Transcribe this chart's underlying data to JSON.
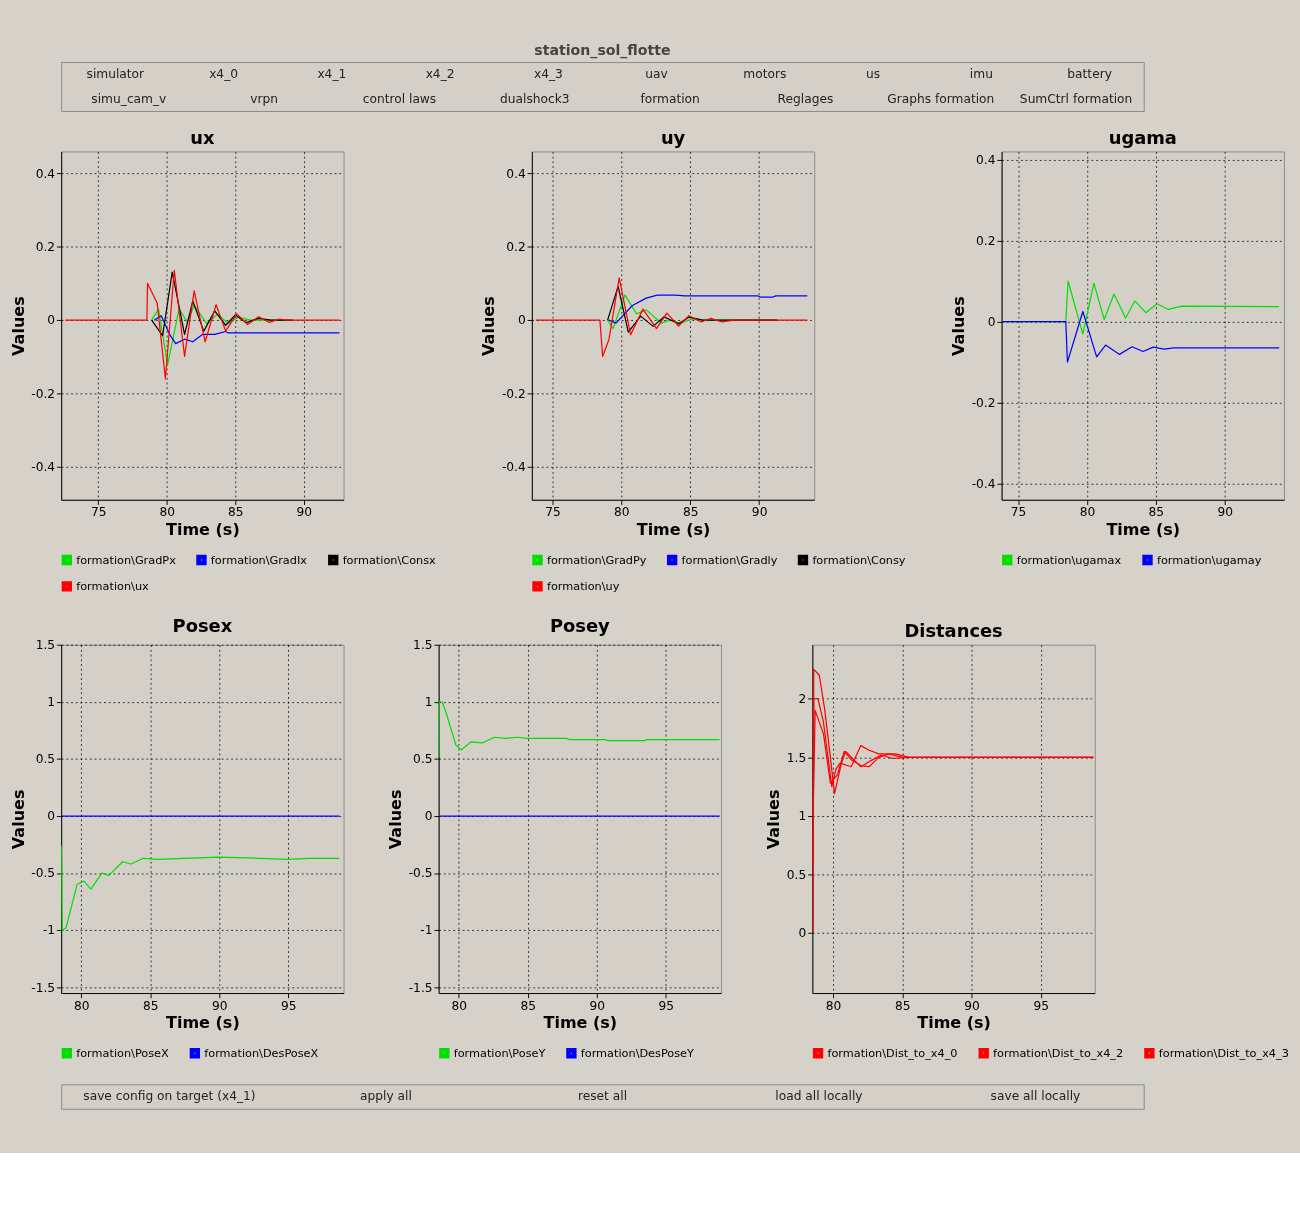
{
  "chart_data": [
    {
      "type": "other",
      "title": "station_sol_flotte",
      "annotations": [
        "simulator",
        "x4_0",
        "x4_1",
        "x4_2",
        "x4_3",
        "uav",
        "motors",
        "us",
        "imu",
        "battery",
        "simu_cam_v",
        "vrpn",
        "control laws",
        "dualshock3",
        "formation",
        "Reglages",
        "Graphs formation",
        "SumCtrl formation"
      ]
    },
    {
      "type": "line",
      "title": "ux",
      "xlabel": "Time (s)",
      "ylabel": "Values",
      "xlim": [
        72.3,
        92.9
      ],
      "xticks": [
        75,
        80,
        85,
        90
      ],
      "ylim": [
        -0.49,
        0.46
      ],
      "yticks": [
        -0.4,
        -0.2,
        0,
        0.2,
        0.4
      ],
      "grid": true,
      "legend": "bottom",
      "series": [
        {
          "name": "formation\\GradPx",
          "color": "#00e000",
          "x": [
            78.9,
            79.4,
            80.06,
            80.9,
            81.5,
            82.0,
            82.9,
            83.7,
            84.5,
            85.2,
            86.1,
            88.6
          ],
          "values": [
            0,
            0.03,
            -0.122,
            0.03,
            -0.005,
            0.04,
            -0.009,
            0.016,
            -0.009,
            0.008,
            0,
            0
          ]
        },
        {
          "name": "formation\\GradIx",
          "color": "#0000ff",
          "x": [
            79.1,
            79.6,
            80.2,
            80.65,
            81.3,
            81.9,
            82.6,
            83.5,
            84.3,
            84.5,
            92.6
          ],
          "values": [
            0,
            0.012,
            -0.038,
            -0.064,
            -0.052,
            -0.059,
            -0.039,
            -0.039,
            -0.031,
            -0.035,
            -0.035
          ]
        },
        {
          "name": "formation\\Consx",
          "color": "#000000",
          "x": [
            78.9,
            79.7,
            80.4,
            81.3,
            81.9,
            82.7,
            83.5,
            84.3,
            85.0,
            85.8,
            86.7,
            87.6,
            89.2
          ],
          "values": [
            0,
            -0.042,
            0.131,
            -0.039,
            0.052,
            -0.03,
            0.025,
            -0.014,
            0.014,
            -0.007,
            0.005,
            0,
            0
          ]
        },
        {
          "name": "formation\\ux",
          "color": "#ff0000",
          "x": [
            72.6,
            78.55,
            78.6,
            79.3,
            79.9,
            80.55,
            81.3,
            82.0,
            82.8,
            83.6,
            84.3,
            85.1,
            85.9,
            86.7,
            87.5,
            88.2,
            88.8,
            92.6
          ],
          "values": [
            0,
            0,
            0.1,
            0.047,
            -0.16,
            0.136,
            -0.099,
            0.08,
            -0.059,
            0.042,
            -0.03,
            0.017,
            -0.012,
            0.009,
            -0.006,
            0.003,
            0,
            0
          ]
        }
      ]
    },
    {
      "type": "line",
      "title": "uy",
      "xlabel": "Time (s)",
      "ylabel": "Values",
      "xlim": [
        73.5,
        94.0
      ],
      "xticks": [
        75,
        80,
        85,
        90
      ],
      "ylim": [
        -0.49,
        0.46
      ],
      "yticks": [
        -0.4,
        -0.2,
        0,
        0.2,
        0.4
      ],
      "grid": true,
      "legend": "bottom",
      "series": [
        {
          "name": "formation\\GradPy",
          "color": "#00e000",
          "x": [
            79.0,
            79.4,
            80.26,
            81.1,
            81.8,
            82.9,
            83.5,
            84.3,
            85.1,
            85.9,
            91.3
          ],
          "values": [
            0,
            -0.023,
            0.069,
            0.017,
            0.028,
            -0.008,
            0,
            -0.008,
            0.003,
            0,
            0
          ]
        },
        {
          "name": "formation\\Gradly",
          "color": "#0000ff",
          "x": [
            79.1,
            79.6,
            80.8,
            81.8,
            82.6,
            83.9,
            84.6,
            89.9,
            90.1,
            91.0,
            91.2,
            93.5
          ],
          "values": [
            0,
            -0.008,
            0.04,
            0.06,
            0.068,
            0.068,
            0.066,
            0.066,
            0.063,
            0.063,
            0.066,
            0.066
          ]
        },
        {
          "name": "formation\\Consy",
          "color": "#000000",
          "x": [
            79.0,
            79.76,
            80.5,
            81.4,
            82.3,
            83.1,
            84.15,
            84.9,
            85.9,
            91.3
          ],
          "values": [
            0,
            0.092,
            -0.033,
            0.011,
            -0.017,
            0.009,
            -0.01,
            0.008,
            0,
            0
          ]
        },
        {
          "name": "formation\\uy",
          "color": "#ff0000",
          "x": [
            73.8,
            78.44,
            78.64,
            79.1,
            79.84,
            80.67,
            81.56,
            82.55,
            83.3,
            84.15,
            84.9,
            85.8,
            86.5,
            87.3,
            88.2,
            93.5
          ],
          "values": [
            0,
            0,
            -0.099,
            -0.052,
            0.115,
            -0.04,
            0.03,
            -0.023,
            0.019,
            -0.016,
            0.012,
            -0.005,
            0.005,
            -0.005,
            0,
            0
          ]
        }
      ]
    },
    {
      "type": "line",
      "title": "ugama",
      "xlabel": "Time (s)",
      "ylabel": "Values",
      "xlim": [
        73.8,
        94.3
      ],
      "xticks": [
        75,
        80,
        85,
        90
      ],
      "ylim": [
        -0.44,
        0.42
      ],
      "yticks": [
        -0.4,
        -0.2,
        0,
        0.2,
        0.4
      ],
      "grid": true,
      "legend": "bottom",
      "series": [
        {
          "name": "formation\\ugamax",
          "color": "#00e000",
          "x": [
            73.9,
            78.46,
            78.63,
            79.7,
            80.5,
            81.25,
            81.96,
            82.8,
            83.47,
            84.27,
            85.08,
            85.9,
            86.9,
            93.95
          ],
          "values": [
            0,
            0,
            0.1,
            -0.031,
            0.095,
            0.005,
            0.068,
            0.009,
            0.051,
            0.022,
            0.044,
            0.03,
            0.038,
            0.037
          ]
        },
        {
          "name": "formation\\ugamay",
          "color": "#0000ff",
          "x": [
            73.9,
            78.46,
            78.58,
            79.7,
            80.7,
            81.35,
            82.36,
            83.27,
            84.07,
            84.8,
            85.6,
            86.3,
            93.95
          ],
          "values": [
            0,
            0,
            -0.1,
            0.025,
            -0.087,
            -0.058,
            -0.081,
            -0.062,
            -0.074,
            -0.063,
            -0.068,
            -0.065,
            -0.065
          ]
        }
      ]
    },
    {
      "type": "line",
      "title": "Posex",
      "xlabel": "Time (s)",
      "ylabel": "Values",
      "xlim": [
        78.55,
        99.0
      ],
      "xticks": [
        80,
        85,
        90,
        95
      ],
      "ylim": [
        -1.55,
        1.5
      ],
      "yticks": [
        -1.5,
        -1,
        -0.5,
        0,
        0.5,
        1,
        1.5
      ],
      "grid": true,
      "legend": "bottom",
      "series": [
        {
          "name": "formation\\PoseX",
          "color": "#00e000",
          "x": [
            78.57,
            78.6,
            78.63,
            78.9,
            79.7,
            80.2,
            80.7,
            81.5,
            82.0,
            83.0,
            83.6,
            84.5,
            85.5,
            89.9,
            92.9,
            94.9,
            96.5,
            98.7
          ],
          "values": [
            -0.26,
            -0.7,
            -1.0,
            -0.98,
            -0.6,
            -0.57,
            -0.64,
            -0.5,
            -0.52,
            -0.4,
            -0.42,
            -0.37,
            -0.38,
            -0.36,
            -0.37,
            -0.38,
            -0.37,
            -0.37
          ]
        },
        {
          "name": "formation\\DesPoseX",
          "color": "#0000ff",
          "x": [
            78.6,
            98.7
          ],
          "values": [
            0,
            0
          ]
        }
      ]
    },
    {
      "type": "line",
      "title": "Posey",
      "xlabel": "Time (s)",
      "ylabel": "Values",
      "xlim": [
        78.55,
        99.0
      ],
      "xticks": [
        80,
        85,
        90,
        95
      ],
      "ylim": [
        -1.55,
        1.5
      ],
      "yticks": [
        -1.5,
        -1,
        -0.5,
        0,
        0.5,
        1,
        1.5
      ],
      "grid": true,
      "legend": "bottom",
      "series": [
        {
          "name": "formation\\PoseY",
          "color": "#00e000",
          "x": [
            78.56,
            78.58,
            78.8,
            79.1,
            79.8,
            80.2,
            80.9,
            81.7,
            82.6,
            83.4,
            84.25,
            84.96,
            87.8,
            88.0,
            90.6,
            90.8,
            93.5,
            93.6,
            98.9
          ],
          "values": [
            0.52,
            1.0,
            1.0,
            0.9,
            0.62,
            0.58,
            0.65,
            0.64,
            0.69,
            0.68,
            0.69,
            0.68,
            0.68,
            0.67,
            0.67,
            0.66,
            0.66,
            0.67,
            0.67
          ]
        },
        {
          "name": "formation\\DesPoseY",
          "color": "#0000ff",
          "x": [
            78.6,
            98.9
          ],
          "values": [
            0,
            0
          ]
        }
      ]
    },
    {
      "type": "line",
      "title": "Distances",
      "xlabel": "Time (s)",
      "ylabel": "Values",
      "xlim": [
        78.5,
        98.9
      ],
      "xticks": [
        80,
        85,
        90,
        95
      ],
      "ylim": [
        -0.51,
        2.46
      ],
      "yticks": [
        0,
        0.5,
        1,
        1.5,
        2
      ],
      "grid": true,
      "legend": "bottom",
      "series": [
        {
          "name": "formation\\Dist_to_x4_0",
          "color": "#ff0000",
          "x": [
            78.55,
            78.6,
            79.0,
            79.4,
            79.8,
            80.1,
            80.6,
            80.9,
            81.4,
            82.0,
            82.7,
            83.5,
            84.3,
            85.5,
            98.8
          ],
          "values": [
            0,
            2.25,
            2.2,
            1.9,
            1.5,
            1.19,
            1.45,
            1.55,
            1.49,
            1.42,
            1.47,
            1.52,
            1.49,
            1.5,
            1.5
          ]
        },
        {
          "name": "formation\\Dist_to_x4_2",
          "color": "#ff0000",
          "x": [
            78.55,
            78.6,
            78.9,
            79.3,
            79.9,
            80.2,
            80.5,
            81.3,
            82.0,
            82.6,
            83.3,
            84.5,
            85.5,
            98.8
          ],
          "values": [
            0.6,
            2.0,
            2.0,
            1.8,
            1.25,
            1.4,
            1.45,
            1.42,
            1.6,
            1.56,
            1.53,
            1.53,
            1.5,
            1.5
          ]
        },
        {
          "name": "formation\\Dist_to_x4_3",
          "color": "#ff0000",
          "x": [
            78.55,
            78.7,
            79.3,
            79.8,
            80.3,
            80.8,
            81.3,
            82.0,
            82.6,
            83.3,
            84.0,
            85.0,
            98.8
          ],
          "values": [
            1.0,
            1.9,
            1.7,
            1.28,
            1.35,
            1.55,
            1.48,
            1.43,
            1.42,
            1.5,
            1.53,
            1.5,
            1.5
          ]
        }
      ]
    },
    {
      "type": "other",
      "annotations": [
        "save config on target (x4_1)",
        "apply all",
        "reset all",
        "load all locally",
        "save all locally"
      ]
    }
  ]
}
